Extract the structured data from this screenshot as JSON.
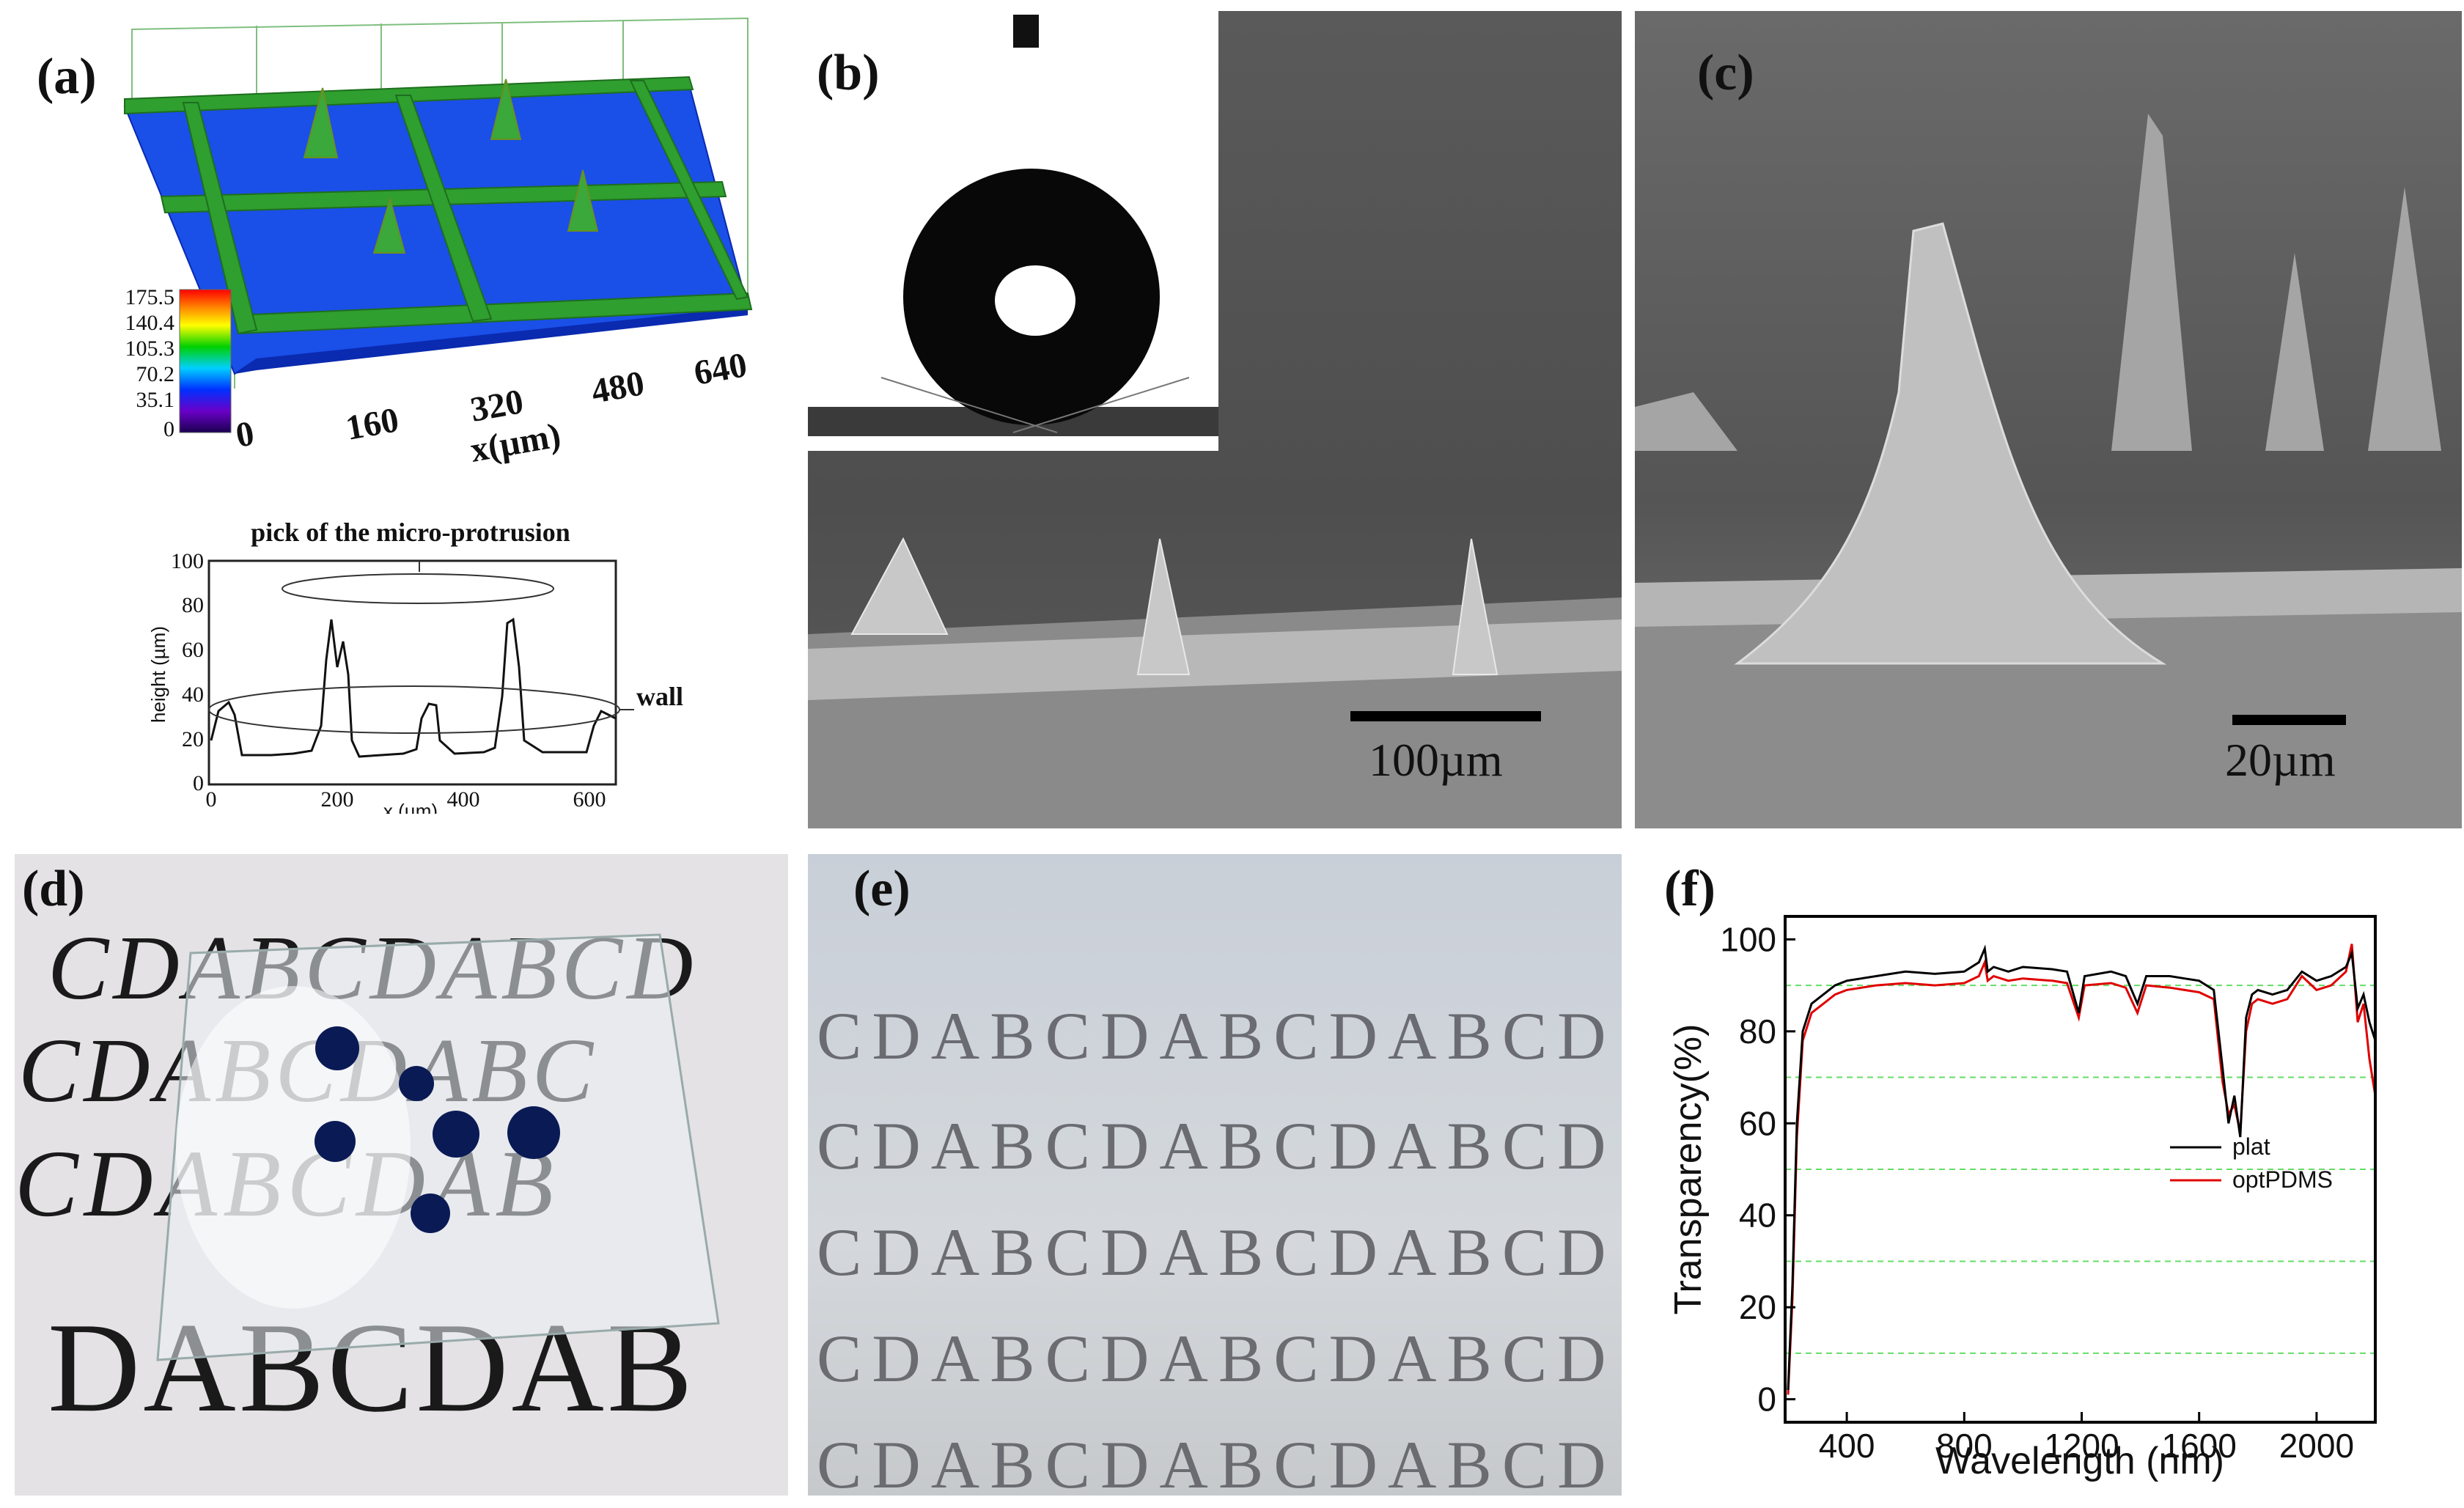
{
  "panel_labels": {
    "a": "(a)",
    "b": "(b)",
    "c": "(c)",
    "d": "(d)",
    "e": "(e)",
    "f": "(f)"
  },
  "panel_a": {
    "colorbar_ticks": [
      "175.5",
      "140.4",
      "105.3",
      "70.2",
      "35.1",
      "0"
    ],
    "x_ticks": [
      "0",
      "160",
      "320",
      "480",
      "640"
    ],
    "x_label": "x(µm)",
    "profile": {
      "title": "pick of the micro-protrusion",
      "ylabel": "height (µm)",
      "xlabel": "x (µm)",
      "wall_label": "wall",
      "y_ticks": [
        "100",
        "80",
        "60",
        "40",
        "20",
        "0"
      ],
      "x_ticks": [
        "0",
        "200",
        "400",
        "600"
      ]
    }
  },
  "panel_b": {
    "scale_bar": "100µm"
  },
  "panel_c": {
    "scale_bar": "20µm"
  },
  "panel_d": {
    "rows": [
      "CDABCDABCD",
      "CDABCDABC",
      "CDABCDAB",
      "DABCDAB"
    ]
  },
  "panel_e": {
    "rows": [
      "CDABCDABCDABCD",
      "CDABCDABCDABCD",
      "CDABCDABCDABCD",
      "CDABCDABCDABCD",
      "CDABCDABCDABCD"
    ]
  },
  "chart_data": {
    "type": "line",
    "title": "",
    "xlabel": "Wavelength (nm)",
    "ylabel": "Transparency(%)",
    "xlim": [
      190,
      2200
    ],
    "ylim": [
      -5,
      105
    ],
    "x_ticks": [
      "400",
      "800",
      "1200",
      "1600",
      "2000"
    ],
    "y_ticks": [
      "0",
      "20",
      "40",
      "60",
      "80",
      "100"
    ],
    "grid": "dashed horizontal at 10, 30, 50, 70, 90",
    "legend_position": "lower-right",
    "series": [
      {
        "name": "plat",
        "color": "#000000",
        "x": [
          200,
          215,
          230,
          250,
          280,
          320,
          360,
          400,
          500,
          600,
          700,
          800,
          850,
          870,
          880,
          900,
          950,
          1000,
          1100,
          1150,
          1190,
          1210,
          1300,
          1350,
          1390,
          1420,
          1500,
          1550,
          1600,
          1650,
          1680,
          1700,
          1720,
          1740,
          1760,
          1780,
          1800,
          1850,
          1900,
          1950,
          2000,
          2050,
          2100,
          2120,
          2140,
          2160,
          2180,
          2200
        ],
        "y": [
          2,
          25,
          60,
          80,
          86,
          88,
          90,
          91,
          92,
          93,
          92.5,
          93,
          95,
          98,
          93,
          94,
          93,
          94,
          93.5,
          93,
          84,
          92,
          93,
          92,
          86,
          92,
          92,
          91.5,
          91,
          89,
          72,
          60,
          66,
          57,
          83,
          88,
          89,
          88,
          89,
          93,
          91,
          92,
          94,
          97,
          85,
          88,
          82,
          78
        ]
      },
      {
        "name": "optPDMS",
        "color": "#e00000",
        "x": [
          200,
          215,
          230,
          250,
          280,
          320,
          360,
          400,
          500,
          600,
          700,
          800,
          850,
          870,
          880,
          900,
          950,
          1000,
          1100,
          1150,
          1190,
          1210,
          1300,
          1350,
          1390,
          1420,
          1500,
          1550,
          1600,
          1650,
          1680,
          1700,
          1720,
          1740,
          1760,
          1780,
          1800,
          1850,
          1900,
          1950,
          2000,
          2050,
          2100,
          2120,
          2140,
          2160,
          2180,
          2200
        ],
        "y": [
          1,
          22,
          57,
          78,
          84,
          86,
          88,
          89,
          90,
          90.5,
          90,
          90.5,
          92,
          95,
          91,
          92,
          91,
          91.5,
          91,
          90.5,
          83,
          90,
          90.5,
          89.5,
          84,
          90,
          89.5,
          89,
          88.5,
          87,
          69,
          62,
          64,
          58,
          80,
          86,
          87,
          86,
          87,
          92,
          89,
          90,
          93,
          99,
          82,
          86,
          74,
          66
        ]
      }
    ]
  }
}
